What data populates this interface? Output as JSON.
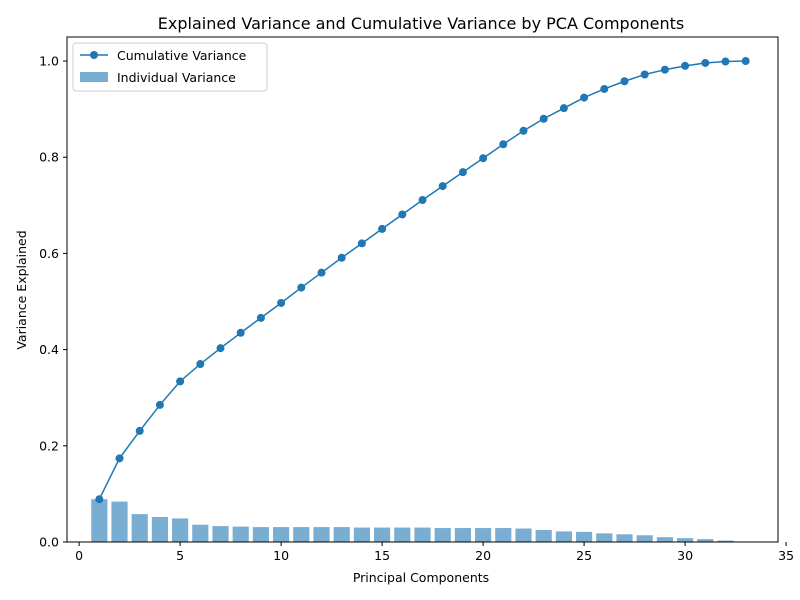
{
  "chart_data": {
    "type": "bar+line",
    "title": "Explained Variance and Cumulative Variance by PCA Components",
    "xlabel": "Principal Components",
    "ylabel": "Variance Explained",
    "xlim": [
      -0.6,
      34.6
    ],
    "ylim": [
      0,
      1.05
    ],
    "xticks": [
      0,
      5,
      10,
      15,
      20,
      25,
      30,
      35
    ],
    "yticks": [
      0.0,
      0.2,
      0.4,
      0.6,
      0.8,
      1.0
    ],
    "xtick_labels": [
      "0",
      "5",
      "10",
      "15",
      "20",
      "25",
      "30",
      "35"
    ],
    "ytick_labels": [
      "0.0",
      "0.2",
      "0.4",
      "0.6",
      "0.8",
      "1.0"
    ],
    "grid": false,
    "legend_position": "top-left",
    "components": [
      1,
      2,
      3,
      4,
      5,
      6,
      7,
      8,
      9,
      10,
      11,
      12,
      13,
      14,
      15,
      16,
      17,
      18,
      19,
      20,
      21,
      22,
      23,
      24,
      25,
      26,
      27,
      28,
      29,
      30,
      31,
      32,
      33
    ],
    "series": [
      {
        "name": "Cumulative Variance",
        "kind": "line",
        "color": "#1f77b4",
        "values": [
          0.089,
          0.174,
          0.231,
          0.285,
          0.334,
          0.37,
          0.403,
          0.435,
          0.466,
          0.497,
          0.529,
          0.56,
          0.591,
          0.621,
          0.651,
          0.681,
          0.711,
          0.74,
          0.769,
          0.798,
          0.827,
          0.855,
          0.88,
          0.902,
          0.924,
          0.942,
          0.958,
          0.972,
          0.982,
          0.99,
          0.996,
          0.999,
          1.0
        ]
      },
      {
        "name": "Individual Variance",
        "kind": "bar",
        "color": "#1f77b4",
        "opacity": 0.6,
        "values": [
          0.089,
          0.084,
          0.058,
          0.052,
          0.049,
          0.036,
          0.033,
          0.032,
          0.031,
          0.031,
          0.031,
          0.031,
          0.031,
          0.03,
          0.03,
          0.03,
          0.03,
          0.029,
          0.029,
          0.029,
          0.029,
          0.028,
          0.025,
          0.022,
          0.021,
          0.018,
          0.016,
          0.014,
          0.01,
          0.008,
          0.006,
          0.003,
          0.001
        ]
      }
    ]
  }
}
